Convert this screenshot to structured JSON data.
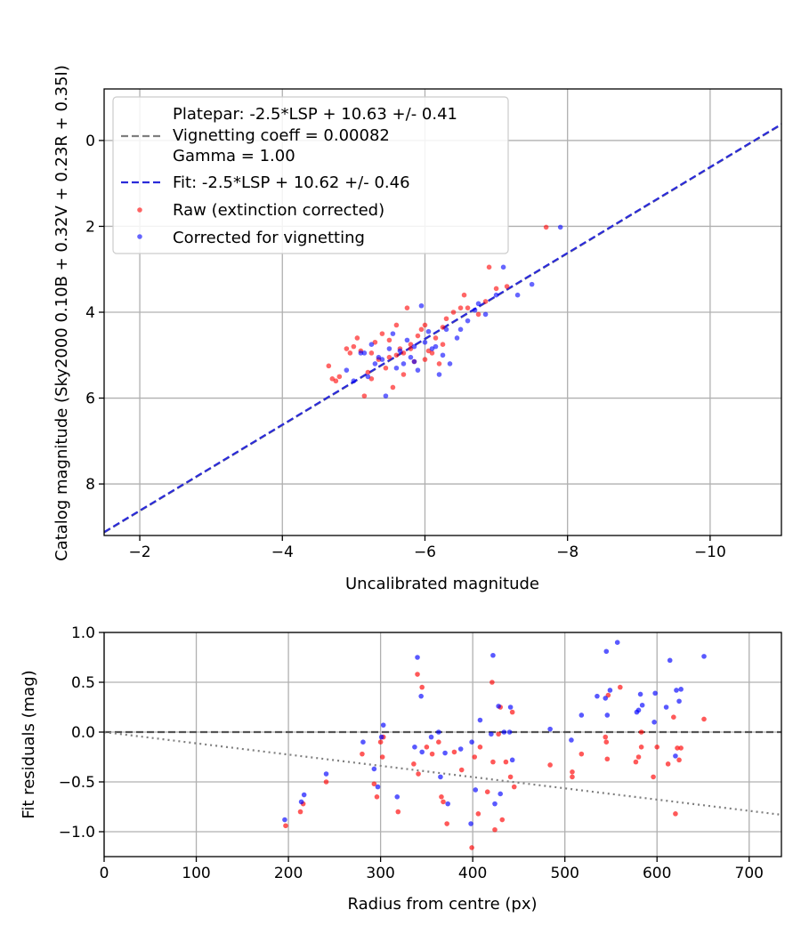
{
  "chart_data": [
    {
      "type": "scatter",
      "xlabel": "Uncalibrated magnitude",
      "ylabel": "Catalog magnitude (Sky2000 0.10B + 0.32V + 0.23R + 0.35I)",
      "xlim": [
        -1.5,
        -11.0
      ],
      "ylim": [
        9.2,
        -1.2
      ],
      "x_inverted": true,
      "y_inverted": true,
      "xticks": [
        -2,
        -4,
        -6,
        -8,
        -10
      ],
      "xtick_labels": [
        "−2",
        "−4",
        "−6",
        "−8",
        "−10"
      ],
      "yticks": [
        0,
        2,
        4,
        6,
        8
      ],
      "ytick_labels": [
        "0",
        "2",
        "4",
        "6",
        "8"
      ],
      "grid": true,
      "legend_position": "top-left",
      "legend": [
        {
          "label": "Platepar: -2.5*LSP + 10.63 +/- 0.41",
          "style": "dashed",
          "color": "#7f7f7f"
        },
        {
          "label": "Vignetting coeff = 0.00082",
          "style": "none"
        },
        {
          "label": "Gamma = 1.00",
          "style": "none"
        },
        {
          "label": "Fit: -2.5*LSP + 10.62 +/- 0.46",
          "style": "dashed",
          "color": "#2b2bd9"
        },
        {
          "label": "Raw (extinction corrected)",
          "style": "marker",
          "color": "#ff0000"
        },
        {
          "label": "Corrected for vignetting",
          "style": "marker",
          "color": "#0000ff"
        }
      ],
      "lines": [
        {
          "name": "Platepar: -2.5*LSP + 10.63 +/- 0.41",
          "x": [
            -1.5,
            -11.0
          ],
          "y": [
            9.13,
            -0.37
          ],
          "color": "#7f7f7f",
          "dash": "dashed"
        },
        {
          "name": "Fit: -2.5*LSP + 10.62 +/- 0.46",
          "x": [
            -1.5,
            -11.0
          ],
          "y": [
            9.12,
            -0.38
          ],
          "color": "#2b2bd9",
          "dash": "dashed"
        }
      ],
      "series": [
        {
          "name": "Raw (extinction corrected)",
          "color": "#ff0000",
          "points": [
            [
              -4.65,
              5.25
            ],
            [
              -4.7,
              5.55
            ],
            [
              -4.75,
              5.6
            ],
            [
              -4.9,
              4.85
            ],
            [
              -4.95,
              4.95
            ],
            [
              -5.05,
              4.6
            ],
            [
              -5.1,
              4.9
            ],
            [
              -5.15,
              5.95
            ],
            [
              -5.2,
              5.4
            ],
            [
              -5.25,
              4.95
            ],
            [
              -5.3,
              4.7
            ],
            [
              -5.35,
              5.1
            ],
            [
              -5.4,
              4.5
            ],
            [
              -5.45,
              5.3
            ],
            [
              -5.5,
              4.65
            ],
            [
              -5.55,
              5.75
            ],
            [
              -5.6,
              4.3
            ],
            [
              -5.6,
              5.0
            ],
            [
              -5.65,
              4.85
            ],
            [
              -5.7,
              4.95
            ],
            [
              -5.7,
              5.45
            ],
            [
              -5.75,
              3.9
            ],
            [
              -5.8,
              4.75
            ],
            [
              -5.85,
              5.15
            ],
            [
              -5.9,
              4.55
            ],
            [
              -5.95,
              4.4
            ],
            [
              -6.0,
              5.1
            ],
            [
              -6.05,
              4.9
            ],
            [
              -6.1,
              4.95
            ],
            [
              -6.15,
              4.6
            ],
            [
              -6.2,
              5.2
            ],
            [
              -6.25,
              4.35
            ],
            [
              -6.3,
              4.15
            ],
            [
              -6.4,
              4.0
            ],
            [
              -6.5,
              3.9
            ],
            [
              -6.55,
              3.6
            ],
            [
              -6.75,
              4.05
            ],
            [
              -6.85,
              3.75
            ],
            [
              -6.9,
              2.95
            ],
            [
              -7.0,
              3.45
            ],
            [
              -7.15,
              3.4
            ],
            [
              -7.7,
              2.02
            ],
            [
              -4.8,
              5.5
            ],
            [
              -5.0,
              4.8
            ],
            [
              -5.25,
              5.55
            ],
            [
              -5.5,
              5.05
            ],
            [
              -5.8,
              4.85
            ],
            [
              -6.0,
              4.3
            ],
            [
              -6.25,
              4.75
            ],
            [
              -6.6,
              3.9
            ]
          ]
        },
        {
          "name": "Corrected for vignetting",
          "color": "#0000ff",
          "points": [
            [
              -4.9,
              5.35
            ],
            [
              -5.0,
              5.6
            ],
            [
              -5.1,
              4.95
            ],
            [
              -5.2,
              5.5
            ],
            [
              -5.25,
              4.75
            ],
            [
              -5.3,
              5.2
            ],
            [
              -5.35,
              5.05
            ],
            [
              -5.45,
              5.95
            ],
            [
              -5.5,
              4.85
            ],
            [
              -5.55,
              4.5
            ],
            [
              -5.6,
              5.3
            ],
            [
              -5.65,
              4.9
            ],
            [
              -5.7,
              5.2
            ],
            [
              -5.75,
              4.65
            ],
            [
              -5.8,
              5.05
            ],
            [
              -5.85,
              4.8
            ],
            [
              -5.9,
              5.35
            ],
            [
              -5.95,
              3.85
            ],
            [
              -6.0,
              4.7
            ],
            [
              -6.05,
              4.45
            ],
            [
              -6.1,
              4.85
            ],
            [
              -6.15,
              4.8
            ],
            [
              -6.25,
              5.0
            ],
            [
              -6.3,
              4.4
            ],
            [
              -6.35,
              5.2
            ],
            [
              -6.45,
              4.6
            ],
            [
              -6.5,
              4.4
            ],
            [
              -6.6,
              4.2
            ],
            [
              -6.7,
              3.95
            ],
            [
              -6.75,
              3.8
            ],
            [
              -6.85,
              4.05
            ],
            [
              -7.0,
              3.6
            ],
            [
              -7.1,
              2.95
            ],
            [
              -7.3,
              3.6
            ],
            [
              -7.5,
              3.35
            ],
            [
              -7.9,
              2.02
            ],
            [
              -5.15,
              4.95
            ],
            [
              -5.4,
              5.1
            ],
            [
              -5.85,
              5.15
            ],
            [
              -6.2,
              5.45
            ]
          ]
        }
      ]
    },
    {
      "type": "scatter",
      "xlabel": "Radius from centre (px)",
      "ylabel": "Fit residuals (mag)",
      "xlim": [
        0,
        735
      ],
      "ylim": [
        -1.25,
        1.0
      ],
      "xticks": [
        0,
        100,
        200,
        300,
        400,
        500,
        600,
        700
      ],
      "xtick_labels": [
        "0",
        "100",
        "200",
        "300",
        "400",
        "500",
        "600",
        "700"
      ],
      "yticks": [
        -1.0,
        -0.5,
        0.0,
        0.5,
        1.0
      ],
      "ytick_labels": [
        "−1.0",
        "−0.5",
        "0.0",
        "0.5",
        "1.0"
      ],
      "grid": true,
      "lines": [
        {
          "name": "zero",
          "x": [
            0,
            735
          ],
          "y": [
            0,
            0
          ],
          "color": "#555555",
          "dash": "dashed"
        },
        {
          "name": "vignetting",
          "x": [
            0,
            735
          ],
          "y": [
            0,
            -0.83
          ],
          "color": "#7f7f7f",
          "dash": "dotted"
        }
      ],
      "series": [
        {
          "name": "Raw (extinction corrected)",
          "color": "#ff0000",
          "points": [
            [
              197,
              -0.94
            ],
            [
              213,
              -0.8
            ],
            [
              216,
              -0.72
            ],
            [
              241,
              -0.5
            ],
            [
              280,
              -0.22
            ],
            [
              293,
              -0.52
            ],
            [
              296,
              -0.65
            ],
            [
              300,
              -0.1
            ],
            [
              302,
              -0.25
            ],
            [
              303,
              -0.05
            ],
            [
              319,
              -0.8
            ],
            [
              336,
              -0.32
            ],
            [
              340,
              0.58
            ],
            [
              341,
              -0.42
            ],
            [
              345,
              0.45
            ],
            [
              350,
              -0.15
            ],
            [
              356,
              -0.22
            ],
            [
              363,
              -0.1
            ],
            [
              366,
              -0.65
            ],
            [
              368,
              -0.7
            ],
            [
              372,
              -0.92
            ],
            [
              380,
              -0.2
            ],
            [
              388,
              -0.38
            ],
            [
              399,
              -1.16
            ],
            [
              402,
              -0.25
            ],
            [
              406,
              -0.82
            ],
            [
              408,
              -0.15
            ],
            [
              416,
              -0.6
            ],
            [
              421,
              0.5
            ],
            [
              422,
              -0.3
            ],
            [
              424,
              -0.98
            ],
            [
              428,
              -0.02
            ],
            [
              432,
              -0.88
            ],
            [
              436,
              -0.3
            ],
            [
              441,
              -0.45
            ],
            [
              443,
              0.2
            ],
            [
              445,
              -0.55
            ],
            [
              484,
              -0.33
            ],
            [
              508,
              -0.4
            ],
            [
              508,
              -0.45
            ],
            [
              518,
              -0.22
            ],
            [
              545,
              -0.1
            ],
            [
              546,
              -0.27
            ],
            [
              547,
              0.37
            ],
            [
              560,
              0.45
            ],
            [
              577,
              -0.3
            ],
            [
              580,
              -0.25
            ],
            [
              583,
              -0.15
            ],
            [
              596,
              -0.45
            ],
            [
              600,
              -0.15
            ],
            [
              612,
              -0.32
            ],
            [
              618,
              0.15
            ],
            [
              620,
              -0.82
            ],
            [
              622,
              -0.16
            ],
            [
              624,
              -0.28
            ],
            [
              626,
              -0.16
            ],
            [
              651,
              0.13
            ],
            [
              583,
              0.0
            ],
            [
              544,
              -0.05
            ],
            [
              430,
              0.25
            ]
          ]
        },
        {
          "name": "Corrected for vignetting",
          "color": "#0000ff",
          "points": [
            [
              196,
              -0.88
            ],
            [
              214,
              -0.7
            ],
            [
              217,
              -0.63
            ],
            [
              241,
              -0.42
            ],
            [
              281,
              -0.1
            ],
            [
              293,
              -0.37
            ],
            [
              297,
              -0.55
            ],
            [
              301,
              -0.05
            ],
            [
              303,
              0.07
            ],
            [
              318,
              -0.65
            ],
            [
              337,
              -0.15
            ],
            [
              340,
              0.75
            ],
            [
              344,
              0.36
            ],
            [
              345,
              -0.2
            ],
            [
              355,
              -0.05
            ],
            [
              363,
              0.0
            ],
            [
              365,
              -0.45
            ],
            [
              370,
              -0.21
            ],
            [
              373,
              -0.72
            ],
            [
              387,
              -0.17
            ],
            [
              398,
              -0.92
            ],
            [
              399,
              -0.1
            ],
            [
              403,
              -0.58
            ],
            [
              408,
              0.12
            ],
            [
              420,
              -0.02
            ],
            [
              422,
              0.77
            ],
            [
              424,
              -0.72
            ],
            [
              428,
              0.26
            ],
            [
              430,
              -0.62
            ],
            [
              434,
              0.0
            ],
            [
              441,
              0.25
            ],
            [
              443,
              -0.28
            ],
            [
              484,
              0.03
            ],
            [
              507,
              -0.08
            ],
            [
              518,
              0.17
            ],
            [
              544,
              0.34
            ],
            [
              545,
              0.81
            ],
            [
              546,
              0.17
            ],
            [
              549,
              0.42
            ],
            [
              557,
              0.9
            ],
            [
              578,
              0.2
            ],
            [
              580,
              0.22
            ],
            [
              582,
              0.38
            ],
            [
              584,
              0.27
            ],
            [
              597,
              0.1
            ],
            [
              598,
              0.39
            ],
            [
              610,
              0.25
            ],
            [
              614,
              0.72
            ],
            [
              620,
              -0.24
            ],
            [
              621,
              0.42
            ],
            [
              624,
              0.31
            ],
            [
              626,
              0.43
            ],
            [
              651,
              0.76
            ],
            [
              535,
              0.36
            ],
            [
              440,
              0.0
            ]
          ]
        }
      ]
    }
  ]
}
